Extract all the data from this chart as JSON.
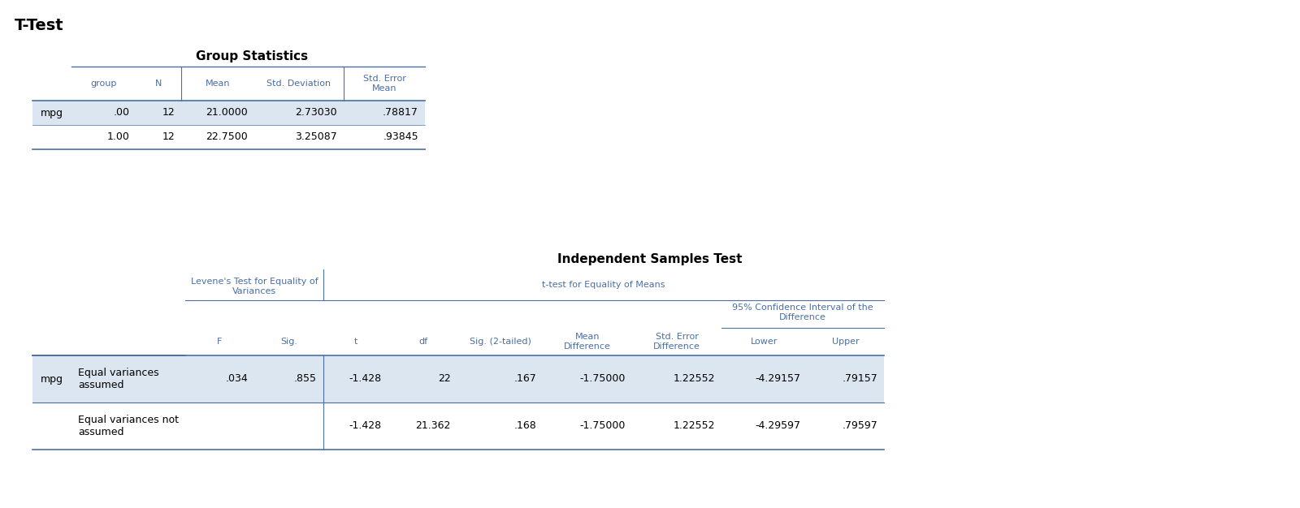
{
  "title": "T-Test",
  "gs_title": "Group Statistics",
  "ist_title": "Independent Samples Test",
  "bg_color": "#ffffff",
  "header_text_color": "#4a6fa5",
  "border_color": "#4a6fa5",
  "row_alt_color": "#dce6f1",
  "row_white_color": "#ffffff",
  "label_color": "#000000",
  "gs_row_label": "mpg",
  "gs_headers": [
    "group",
    "N",
    "Mean",
    "Std. Deviation",
    "Std. Error\nMean"
  ],
  "gs_rows": [
    [
      ".00",
      "12",
      "21.0000",
      "2.73030",
      ".78817"
    ],
    [
      "1.00",
      "12",
      "22.7500",
      "3.25087",
      ".93845"
    ]
  ],
  "ist_row_label": "mpg",
  "ist_rows": [
    [
      "Equal variances\nassumed",
      ".034",
      ".855",
      "-1.428",
      "22",
      ".167",
      "-1.75000",
      "1.22552",
      "-4.29157",
      ".79157"
    ],
    [
      "Equal variances not\nassumed",
      "",
      "",
      "-1.428",
      "21.362",
      ".168",
      "-1.75000",
      "1.22552",
      "-4.29597",
      ".79597"
    ]
  ],
  "levene_label_line1": "Levene's Test for Equality of",
  "levene_label_line2": "Variances",
  "ttest_label": "t-test for Equality of Means",
  "ci_label_line1": "95% Confidence Interval of the",
  "ci_label_line2": "Difference",
  "subheaders": [
    "F",
    "Sig.",
    "t",
    "df",
    "Sig. (2-tailed)",
    "Mean\nDifference",
    "Std. Error\nDifference",
    "Lower",
    "Upper"
  ]
}
